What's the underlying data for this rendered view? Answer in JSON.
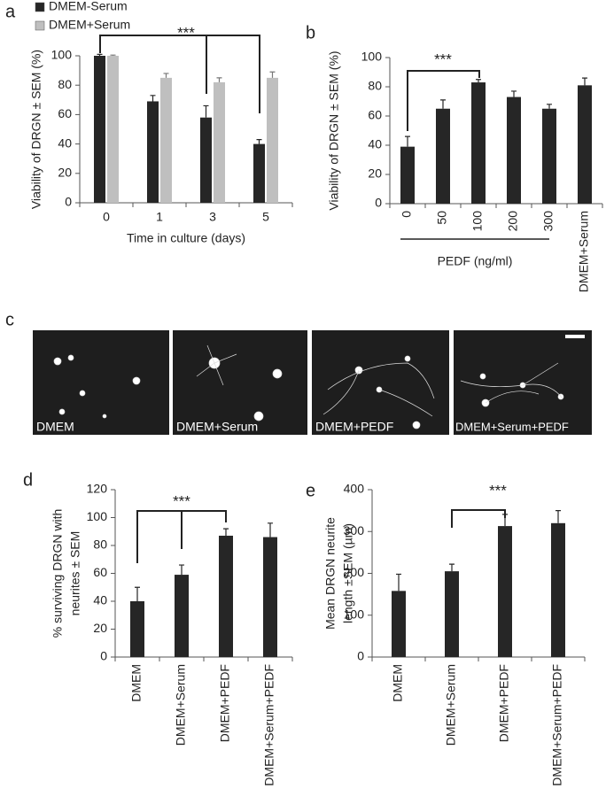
{
  "chart_data": [
    {
      "type": "bar",
      "panel": "a",
      "categories": [
        "0",
        "1",
        "3",
        "5"
      ],
      "series": [
        {
          "name": "DMEM-Serum",
          "color": "#262626",
          "values": [
            100,
            69,
            58,
            40
          ],
          "errors": [
            1,
            4,
            8,
            3
          ]
        },
        {
          "name": "DMEM+Serum",
          "color": "#bfbfbf",
          "values": [
            100,
            85,
            82,
            85
          ],
          "errors": [
            0.5,
            3,
            3,
            4
          ]
        }
      ],
      "xlabel": "Time in culture (days)",
      "ylabel": "Viability of DRGN ± SEM (%)",
      "ylim": [
        0,
        100
      ],
      "yticks": [
        0,
        20,
        40,
        60,
        80,
        100
      ],
      "legend": "upper left",
      "annotation": "***"
    },
    {
      "type": "bar",
      "panel": "b",
      "categories": [
        "0",
        "50",
        "100",
        "200",
        "300",
        "DMEM+Serum"
      ],
      "values": [
        39,
        65,
        83,
        73,
        65,
        81
      ],
      "errors": [
        7,
        6,
        2,
        4,
        3,
        5
      ],
      "color": "#262626",
      "group_label": "PEDF (ng/ml)",
      "ylabel": "Viability of DRGN ± SEM (%)",
      "ylim": [
        0,
        100
      ],
      "yticks": [
        0,
        20,
        40,
        60,
        80,
        100
      ],
      "annotation": "***"
    },
    {
      "type": "bar",
      "panel": "d",
      "categories": [
        "DMEM",
        "DMEM+Serum",
        "DMEM+PEDF",
        "DMEM+Serum+PEDF"
      ],
      "values": [
        40,
        59,
        87,
        86
      ],
      "errors": [
        10,
        7,
        5,
        10
      ],
      "color": "#262626",
      "ylabel": [
        "% surviving DRGN with",
        "neurites ± SEM"
      ],
      "ylim": [
        0,
        120
      ],
      "yticks": [
        0,
        20,
        40,
        60,
        80,
        100,
        120
      ],
      "annotation": "***"
    },
    {
      "type": "bar",
      "panel": "e",
      "categories": [
        "DMEM",
        "DMEM+Serum",
        "DMEM+PEDF",
        "DMEM+Serum+PEDF"
      ],
      "values": [
        158,
        205,
        313,
        320
      ],
      "errors": [
        40,
        17,
        28,
        30
      ],
      "color": "#262626",
      "ylabel": [
        "Mean DRGN neurite",
        "length ±SEM (µm)"
      ],
      "ylim": [
        0,
        400
      ],
      "yticks": [
        0,
        100,
        200,
        300,
        400
      ],
      "annotation": "***"
    }
  ],
  "images": {
    "panel": "c",
    "labels": [
      "DMEM",
      "DMEM+Serum",
      "DMEM+PEDF",
      "DMEM+Serum+PEDF"
    ]
  }
}
